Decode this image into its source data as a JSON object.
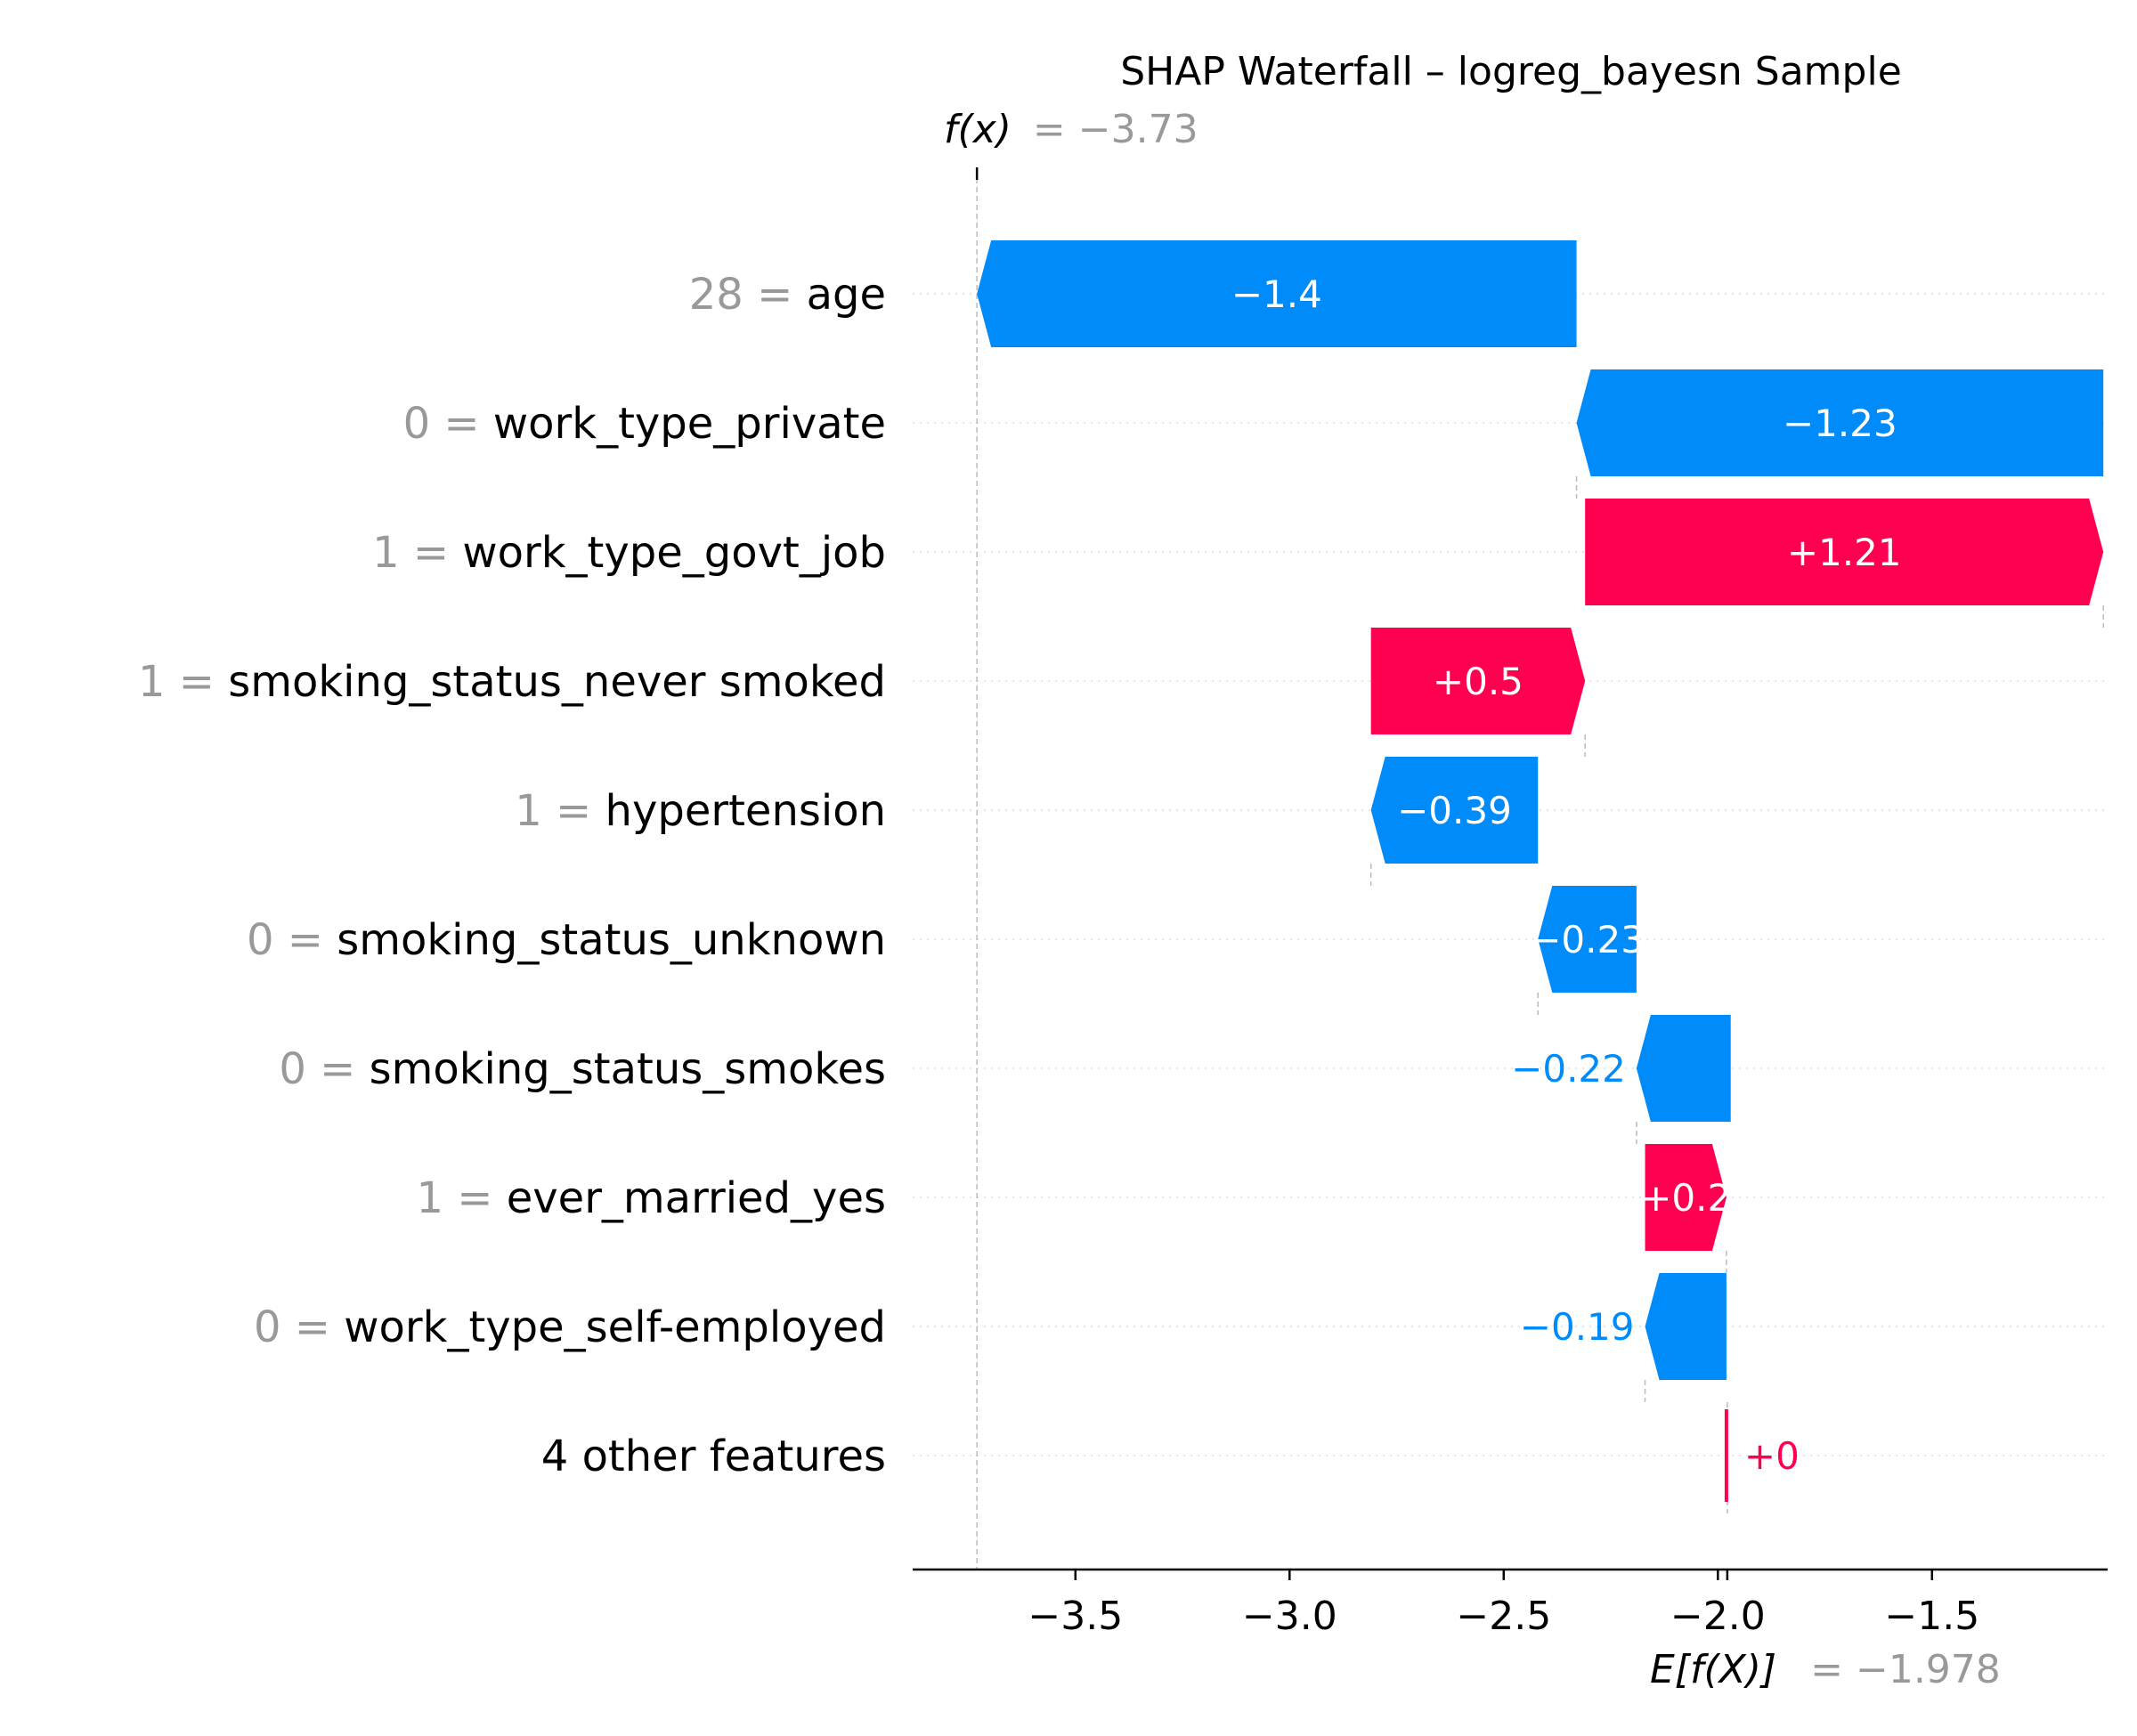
{
  "chart_data": {
    "type": "waterfall",
    "title": "SHAP Waterfall – logreg_bayesn Sample",
    "fx_label": "f(x)",
    "fx_value_text": "= −3.73",
    "fx_value": -3.73,
    "ex_label": "E[f(X)]",
    "ex_value_text": "= −1.978",
    "base_value": -1.978,
    "xlim": [
      -3.88,
      -1.09
    ],
    "xticks": [
      -3.5,
      -3.0,
      -2.5,
      -2.0,
      -1.5
    ],
    "xtick_labels": [
      "−3.5",
      "−3.0",
      "−2.5",
      "−2.0",
      "−1.5"
    ],
    "colors": {
      "positive": "#ff0051",
      "negative": "#008bfb",
      "muted": "#999999",
      "text": "#000000"
    },
    "features": [
      {
        "value": "28",
        "name": "age",
        "start": -2.33,
        "end": -3.73,
        "label": "−1.4",
        "label_inside": true
      },
      {
        "value": "0",
        "name": "work_type_private",
        "start": -1.1,
        "end": -2.33,
        "label": "−1.23",
        "label_inside": true
      },
      {
        "value": "1",
        "name": "work_type_govt_job",
        "start": -2.31,
        "end": -1.1,
        "label": "+1.21",
        "label_inside": true
      },
      {
        "value": "1",
        "name": "smoking_status_never smoked",
        "start": -2.81,
        "end": -2.31,
        "label": "+0.5",
        "label_inside": true
      },
      {
        "value": "1",
        "name": "hypertension",
        "start": -2.42,
        "end": -2.81,
        "label": "−0.39",
        "label_inside": true
      },
      {
        "value": "0",
        "name": "smoking_status_unknown",
        "start": -2.19,
        "end": -2.42,
        "label": "−0.23",
        "label_inside": true
      },
      {
        "value": "0",
        "name": "smoking_status_smokes",
        "start": -1.97,
        "end": -2.19,
        "label": "−0.22",
        "label_inside": false
      },
      {
        "value": "1",
        "name": "ever_married_yes",
        "start": -2.17,
        "end": -1.98,
        "label": "+0.2",
        "label_inside": true
      },
      {
        "value": "0",
        "name": "work_type_self-employed",
        "start": -1.98,
        "end": -2.17,
        "label": "−0.19",
        "label_inside": false
      },
      {
        "value": "",
        "name": "4 other features",
        "start": -1.98,
        "end": -1.98,
        "label": "+0",
        "label_inside": false
      }
    ]
  }
}
